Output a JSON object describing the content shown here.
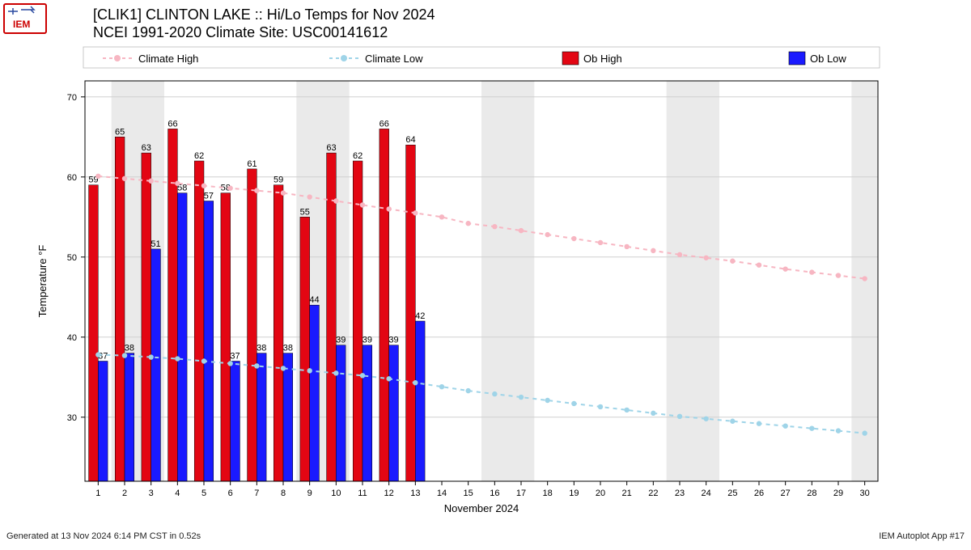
{
  "title_line1": "[CLIK1] CLINTON LAKE :: Hi/Lo Temps for Nov 2024",
  "title_line2": "NCEI 1991-2020 Climate Site: USC00141612",
  "footer_left": "Generated at 13 Nov 2024 6:14 PM CST in 0.52s",
  "footer_right": "IEM Autoplot App #17",
  "legend": {
    "climate_high": "Climate High",
    "climate_low": "Climate Low",
    "ob_high": "Ob High",
    "ob_low": "Ob Low"
  },
  "axes": {
    "xlabel": "November 2024",
    "ylabel": "Temperature °F",
    "x_days": [
      1,
      2,
      3,
      4,
      5,
      6,
      7,
      8,
      9,
      10,
      11,
      12,
      13,
      14,
      15,
      16,
      17,
      18,
      19,
      20,
      21,
      22,
      23,
      24,
      25,
      26,
      27,
      28,
      29,
      30
    ],
    "y_ticks": [
      30,
      40,
      50,
      60,
      70
    ],
    "y_min": 22,
    "y_max": 72
  },
  "colors": {
    "climate_high": "#f7b6c2",
    "climate_low": "#9fd4e8",
    "ob_high": "#e30613",
    "ob_low": "#1a1aff",
    "grid": "#d0d0d0",
    "weekend_band": "#eaeaea",
    "axis": "#000000",
    "text": "#000000"
  },
  "weekend_bands": [
    [
      2,
      3
    ],
    [
      9,
      10
    ],
    [
      16,
      17
    ],
    [
      23,
      24
    ],
    [
      30,
      30
    ]
  ],
  "climate_high": [
    60.1,
    59.8,
    59.5,
    59.2,
    58.9,
    58.6,
    58.3,
    58.0,
    57.5,
    57.0,
    56.5,
    56.0,
    55.5,
    55.0,
    54.2,
    53.8,
    53.3,
    52.8,
    52.3,
    51.8,
    51.3,
    50.8,
    50.3,
    49.9,
    49.5,
    49.0,
    48.5,
    48.1,
    47.7,
    47.3
  ],
  "climate_low": [
    37.8,
    37.7,
    37.5,
    37.3,
    37.0,
    36.7,
    36.4,
    36.1,
    35.8,
    35.5,
    35.2,
    34.8,
    34.3,
    33.8,
    33.3,
    32.9,
    32.5,
    32.1,
    31.7,
    31.3,
    30.9,
    30.5,
    30.1,
    29.8,
    29.5,
    29.2,
    28.9,
    28.6,
    28.3,
    28.0
  ],
  "ob_high": [
    59,
    65,
    63,
    66,
    62,
    58,
    61,
    59,
    55,
    63,
    62,
    66,
    64
  ],
  "ob_low": [
    37,
    38,
    51,
    58,
    57,
    37,
    38,
    38,
    44,
    39,
    39,
    39,
    42
  ],
  "label_fontsize": 11,
  "axis_fontsize": 12,
  "tick_fontsize": 11,
  "legend_fontsize": 13
}
